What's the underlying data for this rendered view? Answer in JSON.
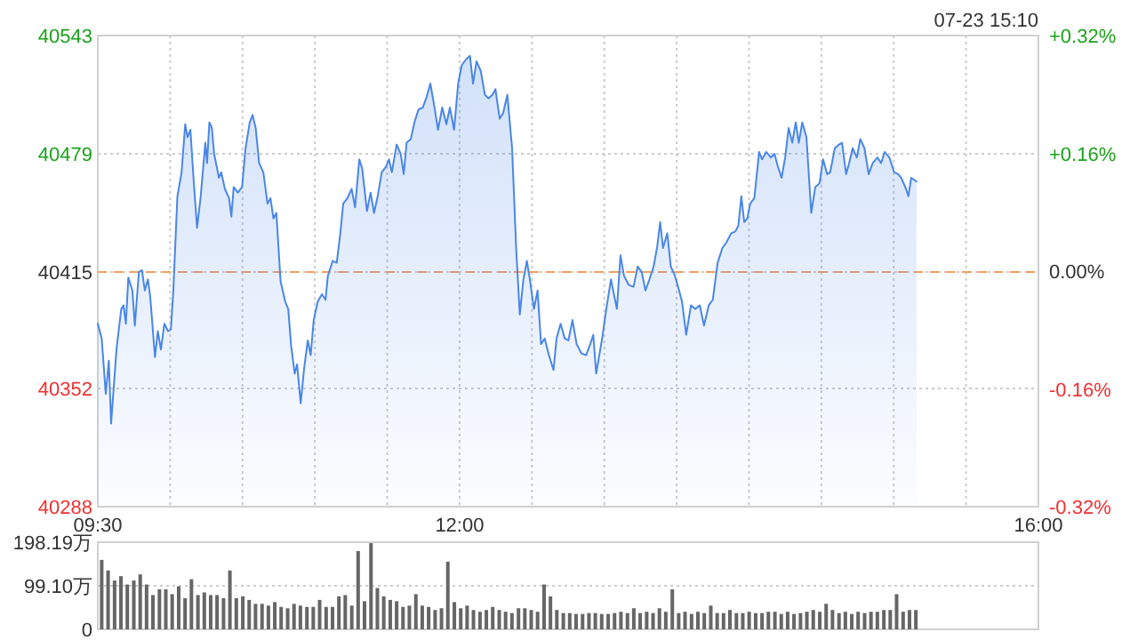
{
  "chart_data": [
    {
      "type": "area",
      "annotations": [
        "07-23 15:10"
      ],
      "xlim": [
        9.5,
        16
      ],
      "xticks": [
        {
          "value": 9.5,
          "label": "09:30"
        },
        {
          "value": 10,
          "label": null
        },
        {
          "value": 10.5,
          "label": null
        },
        {
          "value": 11,
          "label": null
        },
        {
          "value": 11.5,
          "label": null
        },
        {
          "value": 12,
          "label": "12:00"
        },
        {
          "value": 12.5,
          "label": null
        },
        {
          "value": 13,
          "label": null
        },
        {
          "value": 13.5,
          "label": null
        },
        {
          "value": 14,
          "label": null
        },
        {
          "value": 14.5,
          "label": null
        },
        {
          "value": 15,
          "label": null
        },
        {
          "value": 15.5,
          "label": null
        },
        {
          "value": 16,
          "label": "16:00"
        }
      ],
      "ylim": [
        40288,
        40543
      ],
      "yticks": [
        40288,
        40352,
        40415,
        40479,
        40543
      ],
      "y2lim": [
        -0.32,
        0.32
      ],
      "y2ticks": [
        {
          "value": -0.32,
          "label": "-0.32%"
        },
        {
          "value": -0.16,
          "label": "-0.16%"
        },
        {
          "value": 0,
          "label": "0.00%"
        },
        {
          "value": 0.16,
          "label": "+0.16%"
        },
        {
          "value": 0.32,
          "label": "+0.32%"
        }
      ],
      "grid": true,
      "ref_lines": [
        {
          "axis": "y",
          "value": 40415,
          "color": "#f0a060",
          "line_style": "dashed"
        }
      ],
      "series": [
        {
          "color": "#4a86e8",
          "x": [
            9.5,
            9.527,
            9.555,
            9.576,
            9.592,
            9.629,
            9.662,
            9.678,
            9.694,
            9.711,
            9.739,
            9.756,
            9.784,
            9.805,
            9.825,
            9.846,
            9.862,
            9.895,
            9.915,
            9.936,
            9.96,
            9.985,
            10.005,
            10.022,
            10.05,
            10.079,
            10.104,
            10.12,
            10.14,
            10.161,
            10.186,
            10.21,
            10.243,
            10.255,
            10.271,
            10.288,
            10.304,
            10.337,
            10.353,
            10.378,
            10.407,
            10.423,
            10.439,
            10.468,
            10.497,
            10.521,
            10.55,
            10.57,
            10.591,
            10.615,
            10.644,
            10.673,
            10.693,
            10.714,
            10.734,
            10.763,
            10.795,
            10.816,
            10.836,
            10.861,
            10.877,
            10.902,
            10.926,
            10.951,
            10.971,
            10.992,
            11.02,
            11.049,
            11.074,
            11.09,
            11.123,
            11.151,
            11.176,
            11.196,
            11.225,
            11.254,
            11.278,
            11.307,
            11.327,
            11.36,
            11.385,
            11.409,
            11.434,
            11.462,
            11.491,
            11.512,
            11.532,
            11.565,
            11.593,
            11.614,
            11.634,
            11.663,
            11.688,
            11.716,
            11.745,
            11.769,
            11.798,
            11.827,
            11.851,
            11.88,
            11.909,
            11.933,
            11.962,
            11.99,
            12.015,
            12.044,
            12.072,
            12.093,
            12.117,
            12.146,
            12.175,
            12.199,
            12.228,
            12.248,
            12.277,
            12.301,
            12.33,
            12.363,
            12.391,
            12.416,
            12.441,
            12.465,
            12.486,
            12.514,
            12.539,
            12.563,
            12.588,
            12.617,
            12.649,
            12.67,
            12.698,
            12.727,
            12.752,
            12.78,
            12.809,
            12.842,
            12.874,
            12.903,
            12.924,
            12.944,
            12.985,
            13.014,
            13.046,
            13.087,
            13.112,
            13.136,
            13.169,
            13.202,
            13.231,
            13.259,
            13.284,
            13.312,
            13.341,
            13.366,
            13.386,
            13.406,
            13.435,
            13.46,
            13.488,
            13.517,
            13.537,
            13.566,
            13.599,
            13.628,
            13.66,
            13.689,
            13.722,
            13.75,
            13.783,
            13.816,
            13.844,
            13.877,
            13.906,
            13.926,
            13.947,
            13.967,
            13.988,
            14.008,
            14.037,
            14.07,
            14.09,
            14.119,
            14.151,
            14.176,
            14.2,
            14.225,
            14.25,
            14.274,
            14.299,
            14.323,
            14.344,
            14.368,
            14.397,
            14.43,
            14.458,
            14.487,
            14.512,
            14.54,
            14.561,
            14.593,
            14.622,
            14.643,
            14.671,
            14.692,
            14.716,
            14.745,
            14.769,
            14.798,
            14.827,
            14.855,
            14.888,
            14.913,
            14.937,
            14.97,
            15.003,
            15.031,
            15.052,
            15.085,
            15.101,
            15.121,
            15.158
          ],
          "values": [
            40387,
            40379,
            40349,
            40367,
            40333,
            40373,
            40395,
            40397,
            40387,
            40412,
            40405,
            40386,
            40415,
            40416,
            40405,
            40411,
            40402,
            40369,
            40383,
            40373,
            40387,
            40383,
            40384,
            40405,
            40456,
            40469,
            40495,
            40488,
            40492,
            40466,
            40439,
            40455,
            40485,
            40474,
            40496,
            40493,
            40479,
            40466,
            40469,
            40460,
            40455,
            40445,
            40461,
            40458,
            40461,
            40482,
            40496,
            40500,
            40493,
            40474,
            40469,
            40452,
            40455,
            40444,
            40447,
            40410,
            40399,
            40395,
            40375,
            40360,
            40365,
            40344,
            40363,
            40378,
            40370,
            40389,
            40399,
            40403,
            40400,
            40413,
            40421,
            40420,
            40436,
            40452,
            40455,
            40460,
            40450,
            40476,
            40471,
            40448,
            40458,
            40447,
            40456,
            40469,
            40472,
            40476,
            40469,
            40484,
            40479,
            40468,
            40485,
            40487,
            40496,
            40503,
            40504,
            40509,
            40517,
            40504,
            40492,
            40504,
            40495,
            40504,
            40492,
            40517,
            40527,
            40530,
            40532,
            40517,
            40529,
            40524,
            40511,
            40509,
            40511,
            40514,
            40498,
            40501,
            40511,
            40482,
            40428,
            40392,
            40411,
            40421,
            40411,
            40395,
            40405,
            40376,
            40379,
            40370,
            40362,
            40379,
            40387,
            40379,
            40378,
            40389,
            40376,
            40371,
            40370,
            40376,
            40381,
            40360,
            40379,
            40395,
            40411,
            40395,
            40424,
            40413,
            40408,
            40407,
            40418,
            40415,
            40405,
            40411,
            40418,
            40429,
            40442,
            40428,
            40436,
            40418,
            40413,
            40405,
            40399,
            40381,
            40397,
            40395,
            40397,
            40386,
            40397,
            40400,
            40420,
            40428,
            40431,
            40436,
            40437,
            40440,
            40456,
            40442,
            40444,
            40452,
            40455,
            40480,
            40476,
            40480,
            40477,
            40479,
            40472,
            40466,
            40477,
            40493,
            40485,
            40496,
            40485,
            40496,
            40488,
            40447,
            40461,
            40463,
            40476,
            40468,
            40469,
            40482,
            40484,
            40485,
            40468,
            40474,
            40482,
            40477,
            40487,
            40482,
            40468,
            40474,
            40477,
            40474,
            40480,
            40477,
            40469,
            40468,
            40466,
            40460,
            40456,
            40466,
            40464
          ]
        }
      ]
    },
    {
      "type": "bar",
      "color": "#666666",
      "grid": "y",
      "tick_labels": "y",
      "ylim": [
        0,
        198.19
      ],
      "yticks": [
        0,
        {
          "value": 99.1,
          "label": "99.10万"
        },
        {
          "value": 198.19,
          "label": "198.19万"
        }
      ],
      "xlim": [
        9.5,
        16
      ],
      "x": [
        9.527,
        9.571,
        9.616,
        9.66,
        9.704,
        9.749,
        9.793,
        9.837,
        9.881,
        9.926,
        9.97,
        10.014,
        10.059,
        10.103,
        10.147,
        10.192,
        10.236,
        10.28,
        10.324,
        10.369,
        10.413,
        10.457,
        10.502,
        10.546,
        10.59,
        10.635,
        10.679,
        10.723,
        10.767,
        10.812,
        10.856,
        10.9,
        10.945,
        10.989,
        11.033,
        11.078,
        11.122,
        11.166,
        11.21,
        11.255,
        11.299,
        11.343,
        11.388,
        11.432,
        11.476,
        11.521,
        11.565,
        11.609,
        11.653,
        11.698,
        11.742,
        11.786,
        11.831,
        11.875,
        11.919,
        11.964,
        12.008,
        12.052,
        12.096,
        12.141,
        12.185,
        12.229,
        12.274,
        12.318,
        12.362,
        12.407,
        12.451,
        12.495,
        12.539,
        12.584,
        12.628,
        12.672,
        12.717,
        12.761,
        12.805,
        12.85,
        12.894,
        12.938,
        12.982,
        13.027,
        13.071,
        13.115,
        13.16,
        13.204,
        13.248,
        13.293,
        13.337,
        13.381,
        13.425,
        13.47,
        13.514,
        13.558,
        13.603,
        13.647,
        13.691,
        13.736,
        13.78,
        13.824,
        13.868,
        13.913,
        13.957,
        14.001,
        14.046,
        14.09,
        14.134,
        14.179,
        14.223,
        14.267,
        14.311,
        14.356,
        14.4,
        14.444,
        14.489,
        14.533,
        14.577,
        14.622,
        14.666,
        14.71,
        14.754,
        14.799,
        14.843,
        14.887,
        14.932,
        14.976,
        15.02,
        15.065,
        15.109,
        15.153
      ],
      "values": [
        158,
        134,
        111,
        121,
        102,
        111,
        125,
        102,
        78,
        91,
        91,
        80,
        98,
        71,
        114,
        78,
        84,
        78,
        78,
        71,
        134,
        71,
        75,
        67,
        58,
        58,
        54,
        62,
        51,
        48,
        58,
        54,
        51,
        51,
        67,
        51,
        51,
        75,
        78,
        54,
        178,
        64,
        196,
        94,
        75,
        67,
        64,
        51,
        54,
        80,
        54,
        51,
        44,
        48,
        154,
        62,
        48,
        54,
        44,
        40,
        44,
        51,
        44,
        40,
        37,
        48,
        48,
        44,
        40,
        102,
        75,
        44,
        37,
        37,
        35,
        35,
        37,
        37,
        35,
        35,
        37,
        40,
        37,
        48,
        37,
        40,
        37,
        48,
        40,
        91,
        37,
        40,
        35,
        40,
        37,
        54,
        37,
        37,
        44,
        37,
        37,
        40,
        37,
        37,
        40,
        40,
        35,
        40,
        35,
        37,
        40,
        44,
        40,
        58,
        44,
        37,
        40,
        35,
        40,
        37,
        40,
        40,
        44,
        44,
        80,
        40,
        44,
        44
      ]
    }
  ]
}
